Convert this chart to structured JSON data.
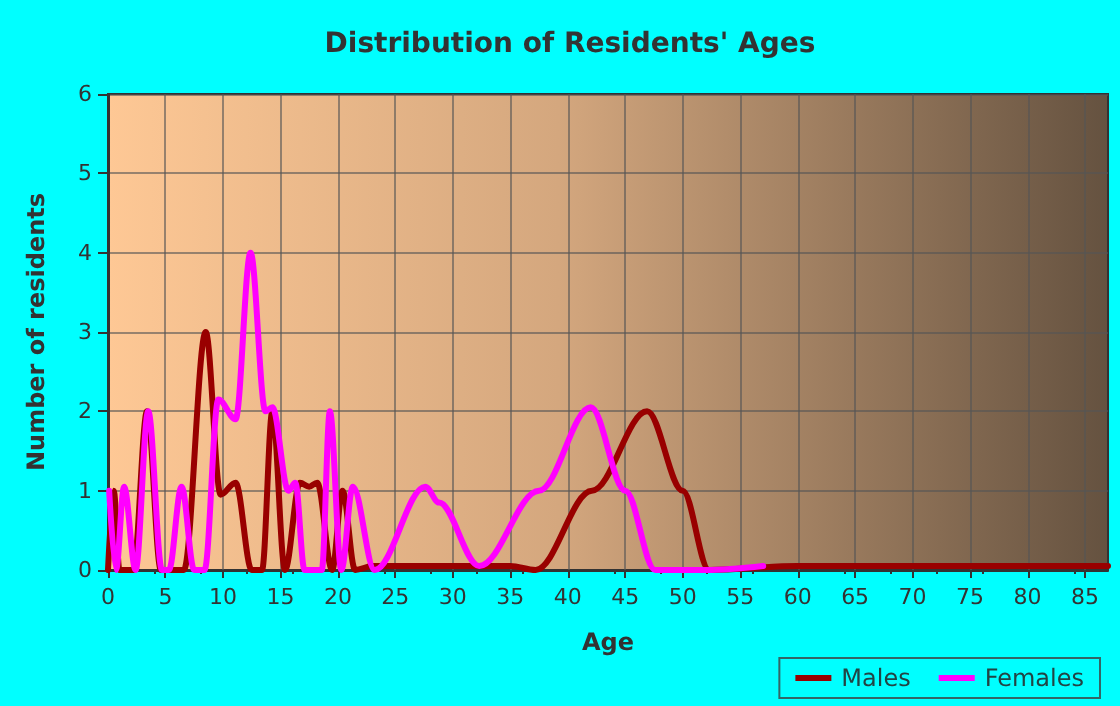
{
  "chart_data": {
    "type": "line",
    "title": "Distribution of Residents' Ages",
    "xlabel": "Age",
    "ylabel": "Number of residents",
    "xlim": [
      0,
      87
    ],
    "xticks": [
      0,
      5,
      10,
      15,
      20,
      25,
      30,
      35,
      40,
      45,
      50,
      55,
      60,
      65,
      70,
      75,
      80,
      85
    ],
    "ylim": [
      0,
      6
    ],
    "yticks": [
      0,
      1,
      2,
      3,
      4,
      5,
      6
    ],
    "grid": true,
    "legend": "bottom right",
    "marker": "none",
    "line_style": "solid",
    "series": [
      {
        "name": "Males",
        "color": "#990000",
        "x": [
          0,
          0.5,
          1,
          2.2,
          3.4,
          4.6,
          6.6,
          8.5,
          9.8,
          11.1,
          12.5,
          13.4,
          14.3,
          15.4,
          16.7,
          17.5,
          18.2,
          19.5,
          20.4,
          21.5,
          23,
          30,
          35,
          37.2,
          42.1,
          46.9,
          50,
          52.3,
          60,
          70,
          80,
          87
        ],
        "values": [
          0,
          1,
          0,
          0,
          2,
          0,
          0,
          3,
          0.95,
          1.1,
          0,
          0,
          2,
          0,
          1.1,
          1.05,
          1.1,
          0,
          1,
          0,
          0.05,
          0.05,
          0.05,
          0,
          1,
          2,
          1,
          0,
          0.05,
          0.05,
          0.05,
          0.05
        ]
      },
      {
        "name": "Females",
        "color": "#ff00ff",
        "x": [
          0.1,
          0.7,
          1.4,
          2.4,
          3.5,
          4.7,
          5.3,
          6.4,
          7.5,
          8.4,
          9.6,
          11.1,
          12.4,
          13.7,
          14.3,
          15.7,
          16.3,
          17.1,
          18.6,
          19.3,
          20.3,
          21.3,
          23.2,
          27.6,
          28.8,
          32.3,
          37.5,
          42,
          45,
          47.6,
          52,
          57
        ],
        "values": [
          1,
          0,
          1.05,
          0,
          2,
          0,
          0,
          1.05,
          0,
          0,
          2.15,
          1.9,
          4,
          2,
          2.05,
          1,
          1.1,
          0,
          0,
          2,
          0,
          1.05,
          0,
          1.05,
          0.85,
          0.05,
          1,
          2.05,
          1,
          0,
          0,
          0.05
        ]
      }
    ]
  }
}
